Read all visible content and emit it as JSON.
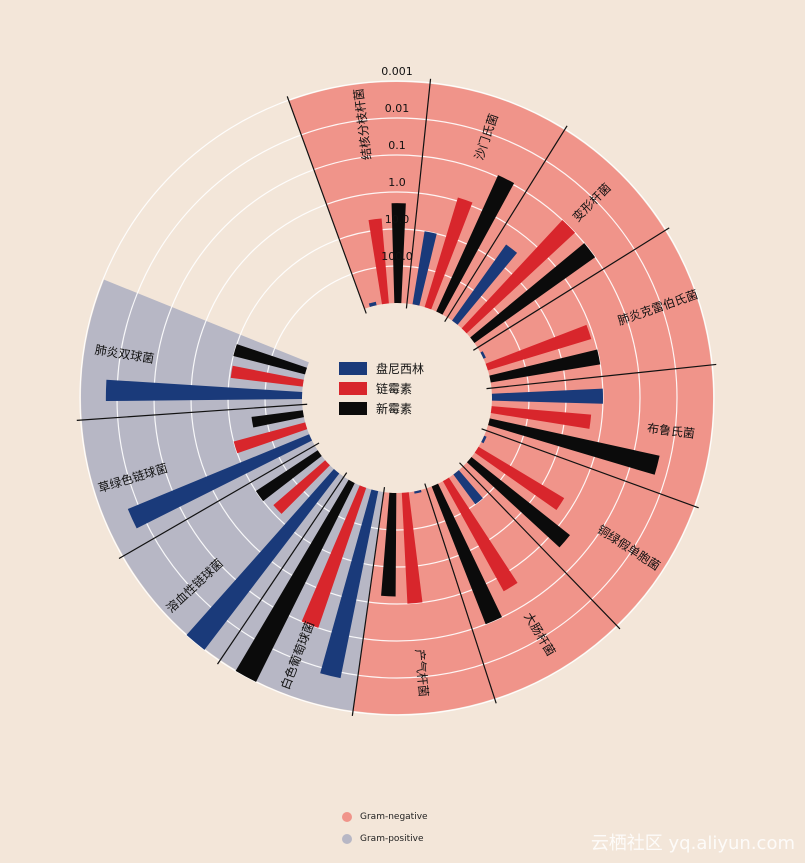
{
  "chart_data": {
    "type": "radial-bar",
    "scale": "log",
    "scale_ticks": [
      "0.001",
      "0.01",
      "0.1",
      "1.0",
      "10.0",
      "100.0"
    ],
    "series": [
      {
        "name": "盘尼西林",
        "color": "#1a3a7a"
      },
      {
        "name": "链霉素",
        "color": "#d8262c"
      },
      {
        "name": "新霉素",
        "color": "#0b0b0b"
      }
    ],
    "bacteria": [
      {
        "name": "结核分枝杆菌",
        "gram": "negative",
        "values": [
          800,
          5,
          2
        ]
      },
      {
        "name": "沙门氏菌",
        "gram": "negative",
        "values": [
          10,
          0.8,
          0.09
        ]
      },
      {
        "name": "变形杆菌",
        "gram": "negative",
        "values": [
          3,
          0.1,
          0.1
        ]
      },
      {
        "name": "肺炎克雷伯氏菌",
        "gram": "negative",
        "values": [
          850,
          1.2,
          1
        ]
      },
      {
        "name": "布鲁氏菌",
        "gram": "negative",
        "values": [
          1,
          2,
          0.02
        ]
      },
      {
        "name": "铜绿假单胞菌",
        "gram": "negative",
        "values": [
          850,
          2,
          0.4
        ]
      },
      {
        "name": "大肠杆菌",
        "gram": "negative",
        "values": [
          100,
          0.4,
          0.1
        ]
      },
      {
        "name": "产气杆菌",
        "gram": "negative",
        "values": [
          870,
          1,
          1.6
        ]
      },
      {
        "name": "白色葡萄球菌",
        "gram": "positive",
        "values": [
          0.007,
          0.1,
          0.001
        ]
      },
      {
        "name": "溶血性链球菌",
        "gram": "positive",
        "values": [
          0.001,
          14,
          10
        ]
      },
      {
        "name": "草绿色链球菌",
        "gram": "positive",
        "values": [
          0.005,
          10,
          40
        ]
      },
      {
        "name": "肺炎双球菌",
        "gram": "positive",
        "values": [
          0.005,
          11,
          10
        ]
      }
    ],
    "legend_bottom": [
      {
        "label": "Gram-negative",
        "color": "#f0948a"
      },
      {
        "label": "Gram-positive",
        "color": "#b7b7c5"
      }
    ]
  },
  "watermark": "云栖社区 yq.aliyun.com"
}
